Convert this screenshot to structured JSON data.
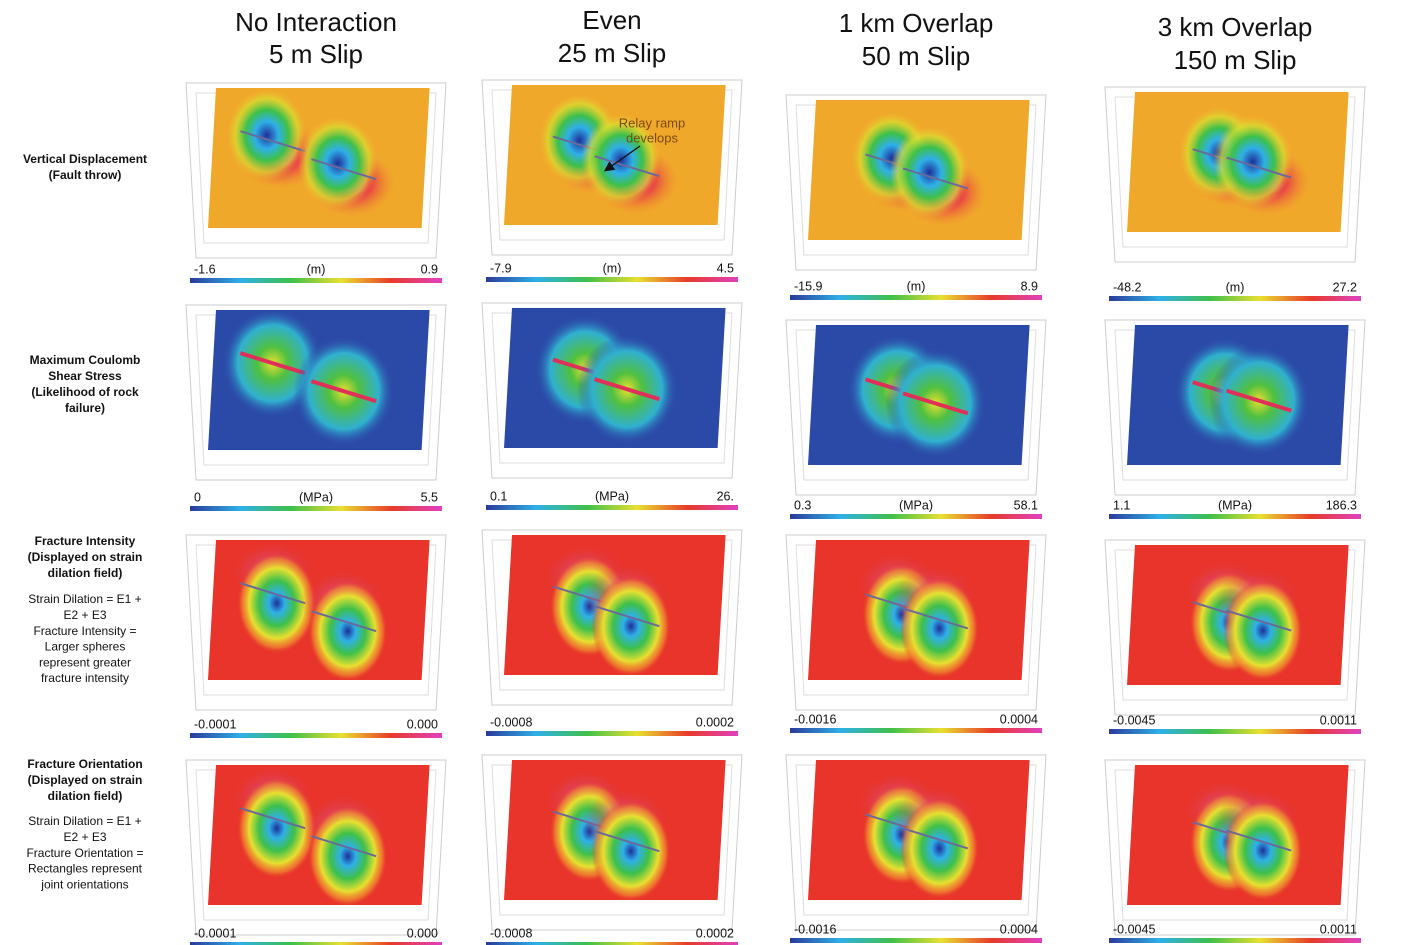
{
  "columns": [
    {
      "title": [
        "No Interaction",
        "5 m Slip"
      ]
    },
    {
      "title": [
        "Even",
        "25 m Slip"
      ]
    },
    {
      "title": [
        "1 km Overlap",
        "50 m Slip"
      ]
    },
    {
      "title": [
        "3 km Overlap",
        "150 m Slip"
      ]
    }
  ],
  "rows": [
    {
      "label": [
        "Vertical Displacement",
        "(Fault throw)"
      ],
      "note": [],
      "cells": [
        {
          "colorbar": {
            "min": "-1.6",
            "unit": "(m)",
            "max": "0.9"
          }
        },
        {
          "colorbar": {
            "min": "-7.9",
            "unit": "(m)",
            "max": "4.5"
          },
          "annotation": [
            "Relay ramp",
            "develops"
          ]
        },
        {
          "colorbar": {
            "min": "-15.9",
            "unit": "(m)",
            "max": "8.9"
          }
        },
        {
          "colorbar": {
            "min": "-48.2",
            "unit": "(m)",
            "max": "27.2"
          }
        }
      ]
    },
    {
      "label": [
        "Maximum Coulomb",
        "Shear Stress",
        "(Likelihood of rock",
        "failure)"
      ],
      "note": [],
      "cells": [
        {
          "colorbar": {
            "min": "0",
            "unit": "(MPa)",
            "max": "5.5"
          }
        },
        {
          "colorbar": {
            "min": "0.1",
            "unit": "(MPa)",
            "max": "26."
          }
        },
        {
          "colorbar": {
            "min": "0.3",
            "unit": "(MPa)",
            "max": "58.1"
          }
        },
        {
          "colorbar": {
            "min": "1.1",
            "unit": "(MPa)",
            "max": "186.3"
          }
        }
      ]
    },
    {
      "label": [
        "Fracture Intensity",
        "(Displayed on strain",
        "dilation field)"
      ],
      "note": [
        "Strain Dilation = E1 +",
        "E2 + E3",
        "Fracture Intensity =",
        "Larger spheres",
        "represent greater",
        "fracture intensity"
      ],
      "cells": [
        {
          "colorbar": {
            "min": "-0.0001",
            "max": "0.000"
          }
        },
        {
          "colorbar": {
            "min": "-0.0008",
            "max": "0.0002"
          }
        },
        {
          "colorbar": {
            "min": "-0.0016",
            "max": "0.0004"
          }
        },
        {
          "colorbar": {
            "min": "-0.0045",
            "max": "0.0011"
          }
        }
      ]
    },
    {
      "label": [
        "Fracture Orientation",
        "(Displayed on strain",
        "dilation field)"
      ],
      "note": [
        "Strain Dilation = E1 +",
        "E2 + E3",
        "Fracture Orientation =",
        "Rectangles represent",
        "joint orientations"
      ],
      "cells": [
        {
          "colorbar": {
            "min": "-0.0001",
            "max": "0.000"
          }
        },
        {
          "colorbar": {
            "min": "-0.0008",
            "max": "0.0002"
          }
        },
        {
          "colorbar": {
            "min": "-0.0016",
            "max": "0.0004"
          }
        },
        {
          "colorbar": {
            "min": "-0.0045",
            "max": "0.0011"
          }
        }
      ]
    }
  ]
}
